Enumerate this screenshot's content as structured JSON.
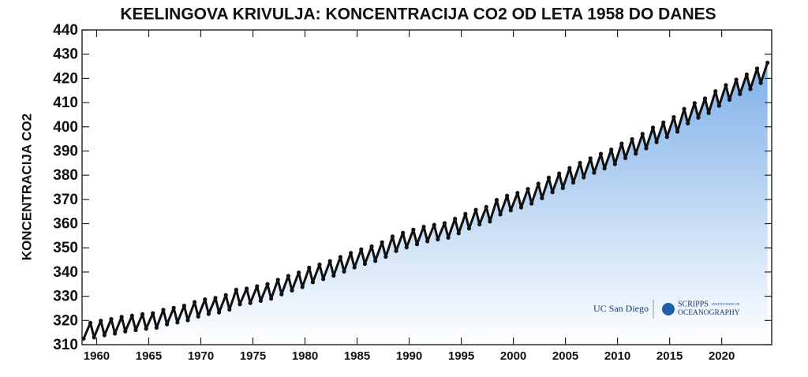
{
  "chart_data": {
    "type": "scatter",
    "title": "KEELINGOVA KRIVULJA: KONCENTRACIJA CO2 OD LETA 1958 DO DANES",
    "y_label": "KONCENTRACIJA CO2",
    "annotations": [
      "UC San Diego",
      "SCRIPPS",
      "INSTITUTION OF",
      "OCEANOGRAPHY"
    ],
    "color": "#111111",
    "fill_color": "#7fb0e8",
    "xlim": [
      1958.6,
      2024.8
    ],
    "xticks": [
      1960,
      1965,
      1970,
      1975,
      1980,
      1985,
      1990,
      1995,
      2000,
      2005,
      2010,
      2015,
      2020
    ],
    "ylim": [
      310,
      440
    ],
    "yticks": [
      310,
      320,
      330,
      340,
      350,
      360,
      370,
      380,
      390,
      400,
      410,
      420,
      430,
      440
    ],
    "x": [
      1958.75,
      1959.4,
      1959.75,
      1960.4,
      1960.75,
      1961.4,
      1961.75,
      1962.4,
      1962.75,
      1963.4,
      1963.75,
      1964.4,
      1964.75,
      1965.4,
      1965.75,
      1966.4,
      1966.75,
      1967.4,
      1967.75,
      1968.4,
      1968.75,
      1969.4,
      1969.75,
      1970.4,
      1970.75,
      1971.4,
      1971.75,
      1972.4,
      1972.75,
      1973.4,
      1973.75,
      1974.4,
      1974.75,
      1975.4,
      1975.75,
      1976.4,
      1976.75,
      1977.4,
      1977.75,
      1978.4,
      1978.75,
      1979.4,
      1979.75,
      1980.4,
      1980.75,
      1981.4,
      1981.75,
      1982.4,
      1982.75,
      1983.4,
      1983.75,
      1984.4,
      1984.75,
      1985.4,
      1985.75,
      1986.4,
      1986.75,
      1987.4,
      1987.75,
      1988.4,
      1988.75,
      1989.4,
      1989.75,
      1990.4,
      1990.75,
      1991.4,
      1991.75,
      1992.4,
      1992.75,
      1993.4,
      1993.75,
      1994.4,
      1994.75,
      1995.4,
      1995.75,
      1996.4,
      1996.75,
      1997.4,
      1997.75,
      1998.4,
      1998.75,
      1999.4,
      1999.75,
      2000.4,
      2000.75,
      2001.4,
      2001.75,
      2002.4,
      2002.75,
      2003.4,
      2003.75,
      2004.4,
      2004.75,
      2005.4,
      2005.75,
      2006.4,
      2006.75,
      2007.4,
      2007.75,
      2008.4,
      2008.75,
      2009.4,
      2009.75,
      2010.4,
      2010.75,
      2011.4,
      2011.75,
      2012.4,
      2012.75,
      2013.4,
      2013.75,
      2014.4,
      2014.75,
      2015.4,
      2015.75,
      2016.4,
      2016.75,
      2017.4,
      2017.75,
      2018.4,
      2018.75,
      2019.4,
      2019.75,
      2020.4,
      2020.75,
      2021.4,
      2021.75,
      2022.4,
      2022.75,
      2023.4,
      2023.75,
      2024.4
    ],
    "values": [
      312.5,
      319.0,
      313.0,
      319.9,
      313.9,
      320.6,
      314.6,
      321.5,
      315.5,
      322.0,
      316.0,
      322.6,
      316.6,
      323.0,
      317.0,
      324.4,
      318.4,
      325.2,
      319.2,
      326.1,
      320.1,
      327.6,
      321.6,
      328.7,
      322.7,
      329.3,
      323.3,
      330.5,
      324.5,
      332.7,
      326.7,
      333.2,
      327.2,
      334.1,
      328.1,
      335.0,
      329.0,
      336.8,
      330.8,
      338.4,
      332.4,
      339.8,
      333.8,
      341.8,
      335.8,
      343.1,
      337.1,
      344.5,
      338.5,
      346.2,
      340.2,
      347.9,
      341.9,
      349.4,
      343.4,
      350.6,
      344.6,
      352.3,
      346.3,
      354.7,
      348.7,
      356.2,
      350.2,
      357.5,
      351.5,
      358.7,
      352.7,
      359.5,
      353.5,
      360.2,
      354.2,
      362.0,
      356.0,
      364.0,
      358.0,
      365.7,
      359.7,
      366.9,
      360.9,
      369.8,
      363.8,
      371.5,
      365.5,
      372.7,
      366.7,
      374.3,
      368.3,
      376.5,
      370.5,
      379.0,
      373.0,
      380.7,
      374.7,
      383.0,
      377.0,
      385.1,
      379.1,
      387.0,
      381.0,
      388.8,
      382.8,
      390.6,
      384.6,
      393.1,
      387.1,
      394.9,
      388.9,
      397.1,
      391.1,
      399.7,
      393.7,
      401.8,
      395.8,
      404.0,
      398.0,
      407.4,
      401.4,
      409.8,
      403.8,
      411.7,
      405.7,
      414.7,
      408.7,
      417.2,
      411.2,
      419.5,
      413.5,
      421.6,
      415.6,
      424.1,
      418.1,
      426.5
    ]
  }
}
